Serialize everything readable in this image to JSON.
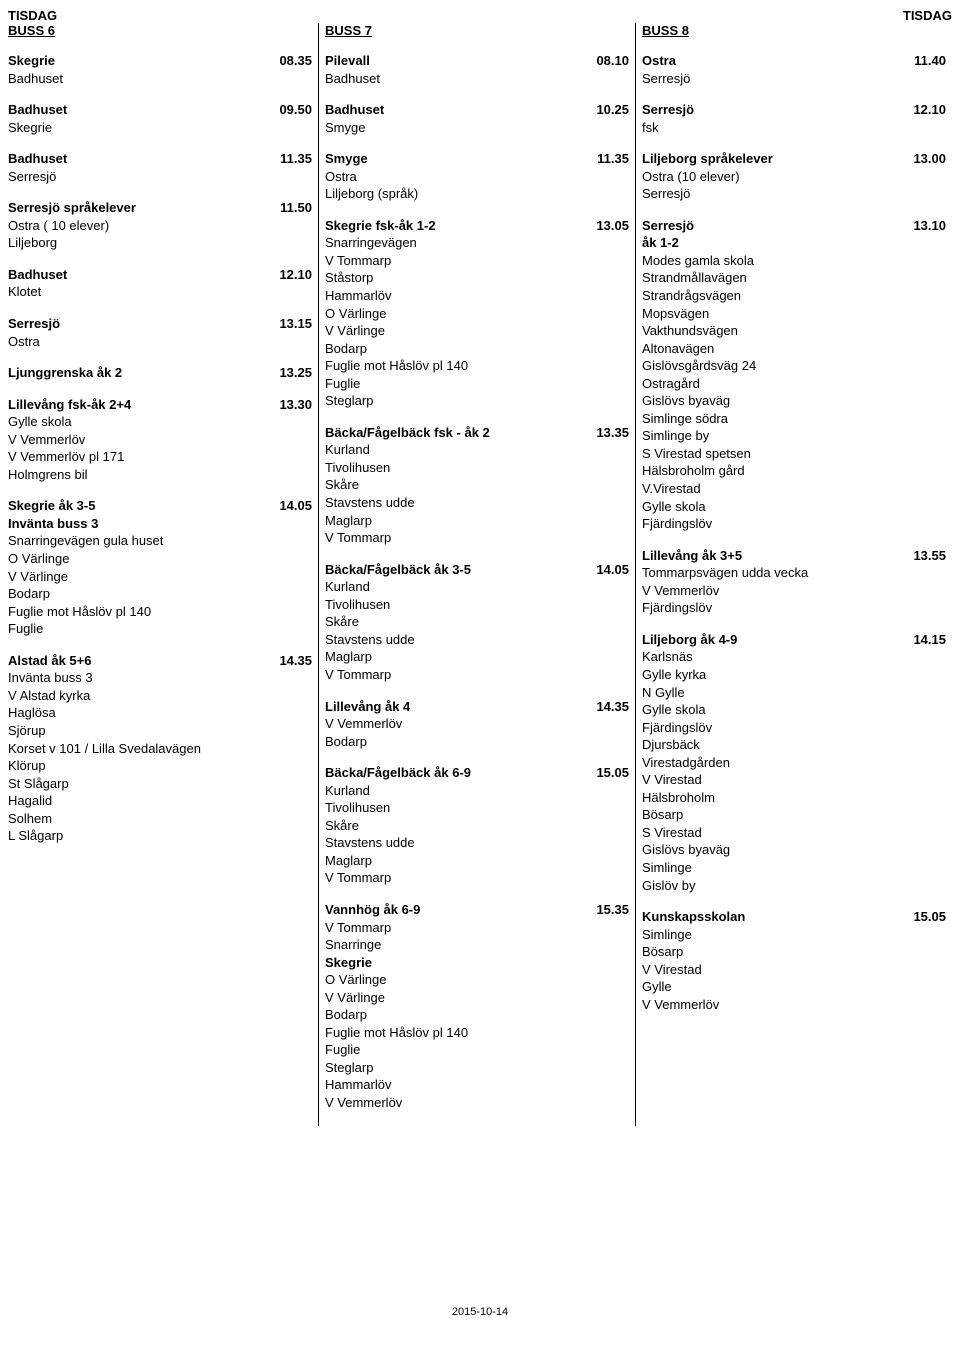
{
  "header": {
    "left": "TISDAG",
    "right": "TISDAG"
  },
  "footer": "2015-10-14",
  "buses": {
    "b6": {
      "title": "BUSS 6",
      "blocks": [
        {
          "head": [
            "Skegrie",
            "08.35"
          ],
          "stops": [
            "Badhuset"
          ]
        },
        {
          "head": [
            "Badhuset",
            "09.50"
          ],
          "stops": [
            "Skegrie"
          ]
        },
        {
          "head": [
            "Badhuset",
            "11.35"
          ],
          "stops": [
            "Serresjö"
          ]
        },
        {
          "head": [
            "Serresjö språkelever",
            "11.50"
          ],
          "stops": [
            "Ostra ( 10 elever)",
            "Liljeborg"
          ]
        },
        {
          "head": [
            "Badhuset",
            "12.10"
          ],
          "stops": [
            "Klotet"
          ]
        },
        {
          "head": [
            "Serresjö",
            "13.15"
          ],
          "stops": [
            "Ostra"
          ]
        },
        {
          "head": [
            "Ljunggrenska åk 2",
            "13.25"
          ],
          "stops": []
        },
        {
          "head": [
            "Lillevång fsk-åk 2+4",
            "13.30"
          ],
          "stops": [
            "Gylle skola",
            "V Vemmerlöv",
            "V Vemmerlöv pl 171",
            "Holmgrens bil"
          ]
        },
        {
          "head": [
            "Skegrie åk 3-5",
            "14.05"
          ],
          "boldExtra": "Invänta buss 3",
          "stops": [
            "Snarringevägen gula huset",
            "O Värlinge",
            "V Värlinge",
            "Bodarp",
            "Fuglie mot Håslöv pl 140",
            "Fuglie"
          ]
        },
        {
          "head": [
            "Alstad  åk 5+6",
            "14.35"
          ],
          "stops": [
            "Invänta buss 3",
            "V Alstad kyrka",
            "Haglösa",
            "Sjörup",
            "Korset v 101 / Lilla Svedalavägen",
            "Klörup",
            "St Slågarp",
            "Hagalid",
            "Solhem",
            "L Slågarp"
          ]
        }
      ]
    },
    "b7": {
      "title": "BUSS 7",
      "blocks": [
        {
          "head": [
            "Pilevall",
            "08.10"
          ],
          "stops": [
            "Badhuset"
          ]
        },
        {
          "head": [
            "Badhuset",
            "10.25"
          ],
          "stops": [
            "Smyge"
          ]
        },
        {
          "head": [
            "Smyge",
            "11.35"
          ],
          "stops": [
            "Ostra",
            "Liljeborg (språk)"
          ]
        },
        {
          "head": [
            "Skegrie fsk-åk 1-2",
            "13.05"
          ],
          "stops": [
            "Snarringevägen",
            "V Tommarp",
            "Ståstorp",
            "Hammarlöv",
            "O Värlinge",
            "V Värlinge",
            "Bodarp",
            "Fuglie mot Håslöv pl 140",
            "Fuglie",
            "Steglarp"
          ]
        },
        {
          "head": [
            "Bäcka/Fågelbäck fsk - åk 2",
            "13.35"
          ],
          "stops": [
            "Kurland",
            "Tivolihusen",
            "Skåre",
            "Stavstens udde",
            "Maglarp",
            "V Tommarp"
          ]
        },
        {
          "head": [
            "Bäcka/Fågelbäck åk 3-5",
            "14.05"
          ],
          "stops": [
            "Kurland",
            "Tivolihusen",
            "Skåre",
            "Stavstens udde",
            "Maglarp",
            "V Tommarp"
          ]
        },
        {
          "head": [
            "Lillevång åk 4",
            "14.35"
          ],
          "stops": [
            "V Vemmerlöv",
            "Bodarp"
          ]
        },
        {
          "head": [
            "Bäcka/Fågelbäck åk 6-9",
            "15.05"
          ],
          "stops": [
            "Kurland",
            "Tivolihusen",
            "Skåre",
            "Stavstens udde",
            "Maglarp",
            "V Tommarp"
          ]
        },
        {
          "head": [
            "Vannhög åk 6-9",
            "15.35"
          ],
          "stops": [
            "V Tommarp",
            "Snarringe"
          ],
          "boldStops": [
            "Skegrie"
          ],
          "stops2": [
            "O Värlinge",
            "V Värlinge",
            "Bodarp",
            "Fuglie mot Håslöv pl 140",
            "Fuglie",
            "Steglarp",
            "Hammarlöv",
            "V Vemmerlöv"
          ]
        }
      ]
    },
    "b8": {
      "title": "BUSS 8",
      "blocks": [
        {
          "head": [
            "Ostra",
            "11.40"
          ],
          "stops": [
            "Serresjö"
          ]
        },
        {
          "head": [
            "Serresjö",
            "12.10"
          ],
          "stops": [
            "fsk"
          ]
        },
        {
          "head": [
            "Liljeborg språkelever",
            "13.00"
          ],
          "stops": [
            "Ostra (10 elever)",
            "Serresjö"
          ]
        },
        {
          "head": [
            "Serresjö",
            "13.10"
          ],
          "boldExtra": " åk 1-2",
          "stops": [
            "Modes gamla skola",
            "Strandmållavägen",
            "Strandrågsvägen",
            "Mopsvägen",
            "Vakthundsvägen",
            "Altonavägen",
            "Gislövsgårdsväg 24",
            "Ostragård",
            "Gislövs byaväg",
            "Simlinge södra",
            "Simlinge by",
            "S Virestad spetsen",
            "Hälsbroholm gård",
            "V.Virestad",
            "Gylle skola",
            "Fjärdingslöv"
          ]
        },
        {
          "head": [
            "Lillevång åk 3+5",
            "13.55"
          ],
          "stops": [
            "Tommarpsvägen udda vecka",
            "V Vemmerlöv",
            "Fjärdingslöv"
          ]
        },
        {
          "head": [
            "Liljeborg åk 4-9",
            "14.15"
          ],
          "stops": [
            "Karlsnäs",
            "Gylle kyrka",
            "N Gylle",
            "Gylle skola",
            "Fjärdingslöv",
            "Djursbäck",
            "Virestadgården",
            "V Virestad",
            "Hälsbroholm",
            "Bösarp",
            "S Virestad",
            "Gislövs byaväg",
            "Simlinge",
            "Gislöv by"
          ]
        },
        {
          "head": [
            "Kunskapsskolan",
            "15.05"
          ],
          "stops": [
            "Simlinge",
            "Bösarp",
            "V Virestad",
            "Gylle",
            "V Vemmerlöv"
          ]
        }
      ]
    }
  }
}
